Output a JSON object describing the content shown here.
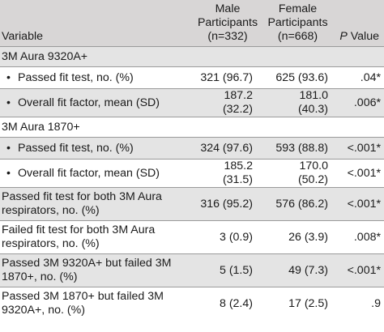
{
  "header": {
    "variable": "Variable",
    "male_line1": "Male",
    "male_line2": "Participants",
    "male_line3": "(n=332)",
    "female_line1": "Female",
    "female_line2": "Participants",
    "female_line3": "(n=668)",
    "p_italic": "P",
    "p_rest": " Value"
  },
  "bullet": "•",
  "rows": [
    {
      "kind": "section",
      "label": "3M Aura 9320A+"
    },
    {
      "kind": "sub",
      "label": "Passed fit test, no. (%)",
      "male": "321 (96.7)",
      "female": "625 (93.6)",
      "p": ".04*"
    },
    {
      "kind": "sub",
      "label": "Overall fit factor, mean (SD)",
      "male": "187.2 (32.2)",
      "female": "181.0 (40.3)",
      "p": ".006*"
    },
    {
      "kind": "section",
      "label": "3M Aura 1870+"
    },
    {
      "kind": "sub",
      "label": "Passed fit test, no. (%)",
      "male": "324 (97.6)",
      "female": "593 (88.8)",
      "p": "<.001*"
    },
    {
      "kind": "sub",
      "label": "Overall fit factor, mean (SD)",
      "male": "185.2 (31.5)",
      "female": "170.0 (50.2)",
      "p": "<.001*"
    },
    {
      "kind": "tall",
      "label_line1": "Passed fit test for both 3M Aura",
      "label_line2": "respirators, no. (%)",
      "male": "316 (95.2)",
      "female": "576 (86.2)",
      "p": "<.001*"
    },
    {
      "kind": "tall",
      "label_line1": "Failed fit test for both 3M Aura",
      "label_line2": "respirators, no. (%)",
      "male": "3 (0.9)",
      "female": "26 (3.9)",
      "p": ".008*"
    },
    {
      "kind": "tall",
      "label_line1": "Passed 3M 9320A+ but failed 3M",
      "label_line2": "1870+, no. (%)",
      "male": "5 (1.5)",
      "female": "49 (7.3)",
      "p": "<.001*"
    },
    {
      "kind": "tall",
      "label_line1": "Passed 3M 1870+ but failed 3M",
      "label_line2": "9320A+, no. (%)",
      "male": "8 (2.4)",
      "female": "17 (2.5)",
      "p": ".9"
    }
  ]
}
